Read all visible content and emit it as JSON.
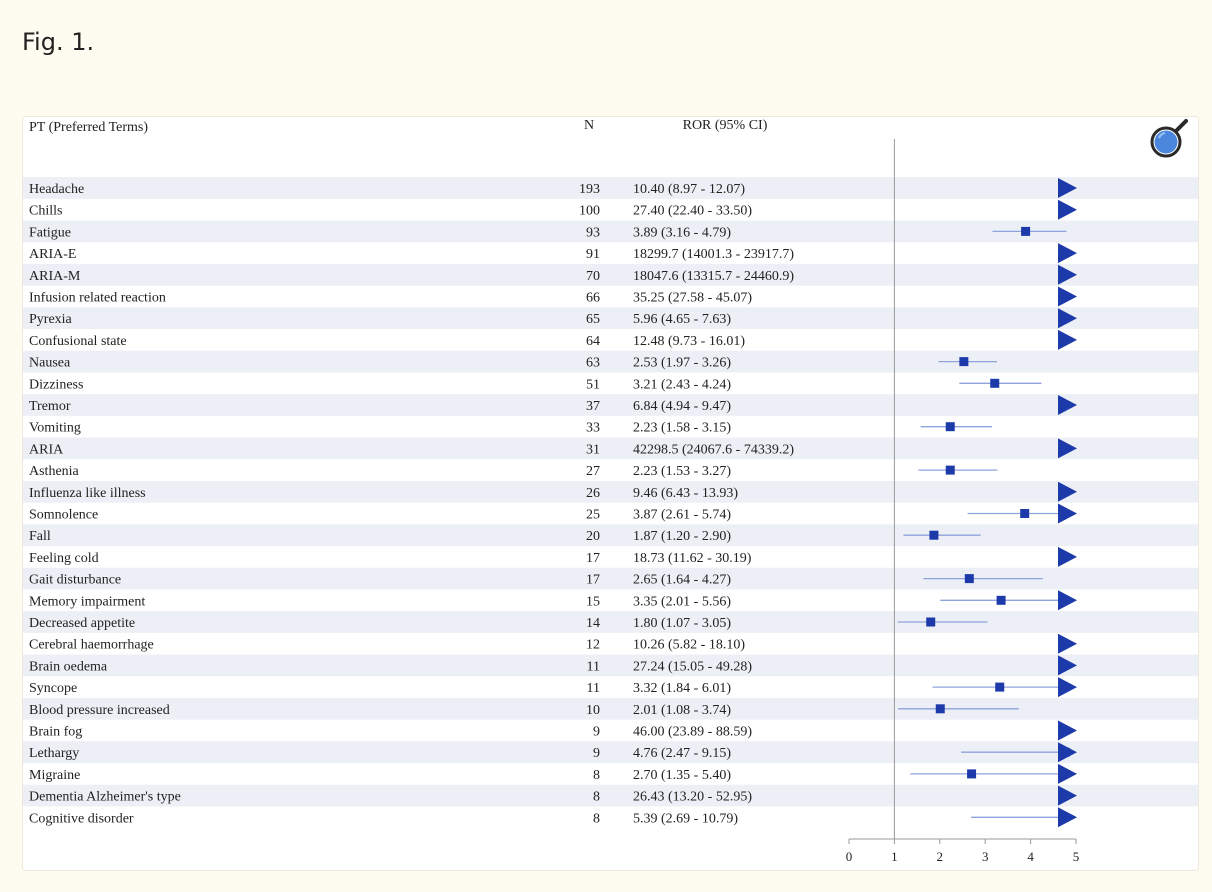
{
  "figure": {
    "title": "Fig. 1."
  },
  "colors": {
    "marker": "#1c3aa9",
    "ci_line": "#8fa3dd",
    "row_shade": "#eceff5",
    "zoom_blue": "#2f6fd6"
  },
  "icons": {
    "zoom": "magnifier-zoom-icon"
  },
  "chart_data": {
    "type": "forest",
    "headers": {
      "term": "PT (Preferred Terms)",
      "n": "N",
      "ror": "ROR (95% CI)"
    },
    "xlim": [
      0,
      5
    ],
    "x_ticks": [
      0,
      1,
      2,
      3,
      4,
      5
    ],
    "reference_line": 1,
    "rows": [
      {
        "term": "Headache",
        "n": "193",
        "ror_text": "10.40 (8.97 - 12.07)",
        "ror": 10.4,
        "lo": 8.97,
        "hi": 12.07
      },
      {
        "term": "Chills",
        "n": "100",
        "ror_text": "27.40 (22.40 - 33.50)",
        "ror": 27.4,
        "lo": 22.4,
        "hi": 33.5
      },
      {
        "term": "Fatigue",
        "n": "93",
        "ror_text": "3.89 (3.16 - 4.79)",
        "ror": 3.89,
        "lo": 3.16,
        "hi": 4.79
      },
      {
        "term": "ARIA-E",
        "n": "91",
        "ror_text": "18299.7 (14001.3 - 23917.7)",
        "ror": 18299.7,
        "lo": 14001.3,
        "hi": 23917.7
      },
      {
        "term": "ARIA-M",
        "n": "70",
        "ror_text": "18047.6 (13315.7 - 24460.9)",
        "ror": 18047.6,
        "lo": 13315.7,
        "hi": 24460.9
      },
      {
        "term": "Infusion related reaction",
        "n": "66",
        "ror_text": "35.25 (27.58 - 45.07)",
        "ror": 35.25,
        "lo": 27.58,
        "hi": 45.07
      },
      {
        "term": "Pyrexia",
        "n": "65",
        "ror_text": "5.96 (4.65 - 7.63)",
        "ror": 5.96,
        "lo": 4.65,
        "hi": 7.63
      },
      {
        "term": "Confusional state",
        "n": "64",
        "ror_text": "12.48 (9.73 - 16.01)",
        "ror": 12.48,
        "lo": 9.73,
        "hi": 16.01
      },
      {
        "term": "Nausea",
        "n": "63",
        "ror_text": "2.53 (1.97 - 3.26)",
        "ror": 2.53,
        "lo": 1.97,
        "hi": 3.26
      },
      {
        "term": "Dizziness",
        "n": "51",
        "ror_text": "3.21 (2.43 - 4.24)",
        "ror": 3.21,
        "lo": 2.43,
        "hi": 4.24
      },
      {
        "term": "Tremor",
        "n": "37",
        "ror_text": "6.84 (4.94 - 9.47)",
        "ror": 6.84,
        "lo": 4.94,
        "hi": 9.47
      },
      {
        "term": "Vomiting",
        "n": "33",
        "ror_text": "2.23 (1.58 - 3.15)",
        "ror": 2.23,
        "lo": 1.58,
        "hi": 3.15
      },
      {
        "term": "ARIA",
        "n": "31",
        "ror_text": "42298.5 (24067.6 - 74339.2)",
        "ror": 42298.5,
        "lo": 24067.6,
        "hi": 74339.2
      },
      {
        "term": "Asthenia",
        "n": "27",
        "ror_text": "2.23 (1.53 - 3.27)",
        "ror": 2.23,
        "lo": 1.53,
        "hi": 3.27
      },
      {
        "term": "Influenza like illness",
        "n": "26",
        "ror_text": "9.46 (6.43 - 13.93)",
        "ror": 9.46,
        "lo": 6.43,
        "hi": 13.93
      },
      {
        "term": "Somnolence",
        "n": "25",
        "ror_text": "3.87 (2.61 - 5.74)",
        "ror": 3.87,
        "lo": 2.61,
        "hi": 5.74
      },
      {
        "term": "Fall",
        "n": "20",
        "ror_text": "1.87 (1.20 - 2.90)",
        "ror": 1.87,
        "lo": 1.2,
        "hi": 2.9
      },
      {
        "term": "Feeling cold",
        "n": "17",
        "ror_text": "18.73 (11.62 - 30.19)",
        "ror": 18.73,
        "lo": 11.62,
        "hi": 30.19
      },
      {
        "term": "Gait disturbance",
        "n": "17",
        "ror_text": "2.65 (1.64 - 4.27)",
        "ror": 2.65,
        "lo": 1.64,
        "hi": 4.27
      },
      {
        "term": "Memory impairment",
        "n": "15",
        "ror_text": "3.35 (2.01 - 5.56)",
        "ror": 3.35,
        "lo": 2.01,
        "hi": 5.56
      },
      {
        "term": "Decreased appetite",
        "n": "14",
        "ror_text": "1.80 (1.07 - 3.05)",
        "ror": 1.8,
        "lo": 1.07,
        "hi": 3.05
      },
      {
        "term": "Cerebral haemorrhage",
        "n": "12",
        "ror_text": "10.26 (5.82 - 18.10)",
        "ror": 10.26,
        "lo": 5.82,
        "hi": 18.1
      },
      {
        "term": "Brain oedema",
        "n": "11",
        "ror_text": "27.24 (15.05 - 49.28)",
        "ror": 27.24,
        "lo": 15.05,
        "hi": 49.28
      },
      {
        "term": "Syncope",
        "n": "11",
        "ror_text": "3.32 (1.84 - 6.01)",
        "ror": 3.32,
        "lo": 1.84,
        "hi": 6.01
      },
      {
        "term": "Blood pressure increased",
        "n": "10",
        "ror_text": "2.01 (1.08 - 3.74)",
        "ror": 2.01,
        "lo": 1.08,
        "hi": 3.74
      },
      {
        "term": "Brain fog",
        "n": "9",
        "ror_text": "46.00 (23.89 - 88.59)",
        "ror": 46.0,
        "lo": 23.89,
        "hi": 88.59
      },
      {
        "term": "Lethargy",
        "n": "9",
        "ror_text": "4.76 (2.47 - 9.15)",
        "ror": 4.76,
        "lo": 2.47,
        "hi": 9.15
      },
      {
        "term": "Migraine",
        "n": "8",
        "ror_text": "2.70 (1.35 - 5.40)",
        "ror": 2.7,
        "lo": 1.35,
        "hi": 5.4
      },
      {
        "term": "Dementia Alzheimer's type",
        "n": "8",
        "ror_text": "26.43 (13.20 - 52.95)",
        "ror": 26.43,
        "lo": 13.2,
        "hi": 52.95
      },
      {
        "term": "Cognitive disorder",
        "n": "8",
        "ror_text": "5.39 (2.69 - 10.79)",
        "ror": 5.39,
        "lo": 2.69,
        "hi": 10.79
      }
    ]
  }
}
